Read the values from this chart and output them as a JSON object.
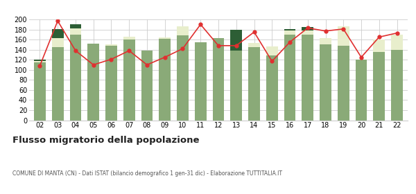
{
  "years": [
    "02",
    "03",
    "04",
    "05",
    "06",
    "07",
    "08",
    "09",
    "10",
    "11",
    "12",
    "13",
    "14",
    "15",
    "16",
    "17",
    "18",
    "19",
    "20",
    "21",
    "22"
  ],
  "iscritti_altri_comuni": [
    115,
    145,
    170,
    152,
    148,
    160,
    138,
    162,
    168,
    155,
    163,
    138,
    145,
    128,
    170,
    170,
    150,
    148,
    120,
    135,
    140
  ],
  "iscritti_estero": [
    3,
    18,
    12,
    0,
    3,
    5,
    0,
    2,
    18,
    0,
    0,
    0,
    8,
    18,
    8,
    8,
    13,
    38,
    0,
    25,
    30
  ],
  "iscritti_altri": [
    2,
    18,
    8,
    0,
    0,
    0,
    0,
    0,
    0,
    0,
    0,
    42,
    0,
    0,
    3,
    7,
    0,
    0,
    0,
    0,
    0
  ],
  "cancellati": [
    108,
    197,
    138,
    110,
    121,
    138,
    110,
    125,
    142,
    190,
    148,
    148,
    175,
    117,
    155,
    183,
    177,
    181,
    125,
    165,
    173
  ],
  "color_comuni": "#8aaa78",
  "color_estero": "#e8eecc",
  "color_altri": "#2d5e35",
  "color_cancellati": "#e03030",
  "color_grid": "#cccccc",
  "color_bg": "#ffffff",
  "ylim": [
    0,
    200
  ],
  "yticks": [
    0,
    20,
    40,
    60,
    80,
    100,
    120,
    140,
    160,
    180,
    200
  ],
  "title": "Flusso migratorio della popolazione",
  "subtitle": "COMUNE DI MANTA (CN) - Dati ISTAT (bilancio demografico 1 gen-31 dic) - Elaborazione TUTTITALIA.IT",
  "bar_width": 0.65
}
